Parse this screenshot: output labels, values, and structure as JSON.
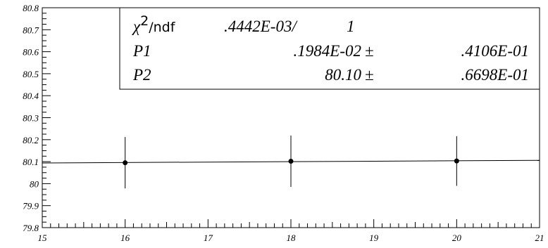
{
  "chart_data": {
    "type": "scatter",
    "title": "",
    "xlabel": "",
    "ylabel": "",
    "xlim": [
      15,
      21
    ],
    "ylim": [
      79.8,
      80.8
    ],
    "grid": false,
    "x_ticks": [
      "15",
      "16",
      "17",
      "18",
      "19",
      "20",
      "21"
    ],
    "y_ticks": [
      "79.8",
      "79.9",
      "80",
      "80.1",
      "80.2",
      "80.3",
      "80.4",
      "80.5",
      "80.6",
      "80.7",
      "80.8"
    ],
    "series": [
      {
        "points": [
          {
            "x": 16,
            "y": 80.095,
            "err": 0.117
          },
          {
            "x": 18,
            "y": 80.102,
            "err": 0.117
          },
          {
            "x": 20,
            "y": 80.103,
            "err": 0.113
          }
        ]
      }
    ],
    "fit": {
      "type": "linear",
      "p1": 0.001984,
      "p2": 80.1
    }
  },
  "stats_box": {
    "chi_label": "χ",
    "chi_sup": "2",
    "ndf_label": "/ndf",
    "chi_value": ".4442E-03/",
    "ndf_value": "1",
    "rows": [
      {
        "name": "P1",
        "value": ".1984E-02",
        "pm": "±",
        "error": ".4106E-01"
      },
      {
        "name": "P2",
        "value": "80.10",
        "pm": "±",
        "error": ".6698E-01"
      }
    ]
  }
}
